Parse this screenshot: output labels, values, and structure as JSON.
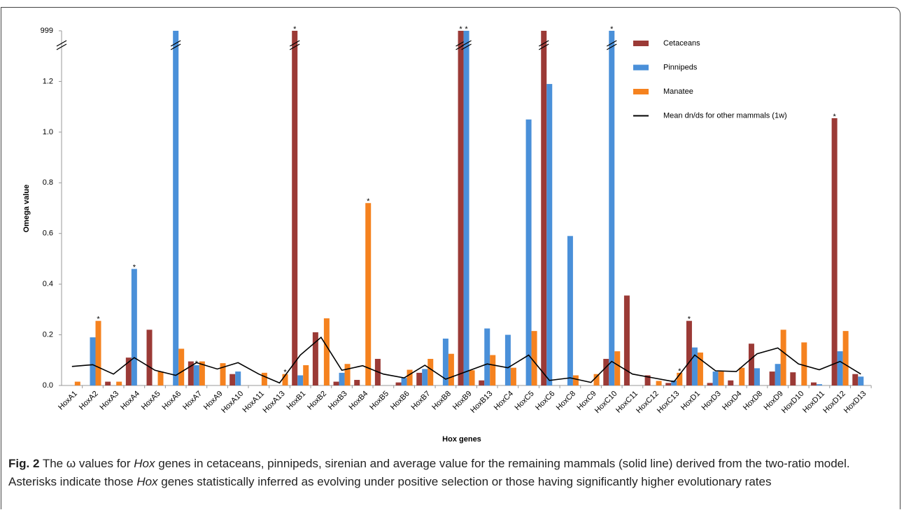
{
  "chart_data": {
    "type": "bar",
    "x_label": "Hox genes",
    "y_label": "Omega value",
    "categories": [
      "HoxA1",
      "HoxA2",
      "HoxA3",
      "HoxA4",
      "HoxA5",
      "HoxA6",
      "HoxA7",
      "HoxA9",
      "HoxA10",
      "HoxA11",
      "HoxA13",
      "HoxB1",
      "HoxB2",
      "HoxB3",
      "HoxB4",
      "HoxB5",
      "HoxB6",
      "HoxB7",
      "HoxB8",
      "HoxB9",
      "HoxB13",
      "HoxC4",
      "HoxC5",
      "HoxC6",
      "HoxC8",
      "HoxC9",
      "HoxC10",
      "HoxC11",
      "HoxC12",
      "HoxC13",
      "HoxD1",
      "HoxD3",
      "HoxD4",
      "HoxD8",
      "HoxD9",
      "HoxD10",
      "HoxD11",
      "HoxD12",
      "HoxD13"
    ],
    "series": [
      {
        "name": "Cetaceans",
        "color": "#9b3a36",
        "values": [
          null,
          null,
          0.015,
          0.11,
          0.22,
          null,
          0.095,
          null,
          0.045,
          null,
          null,
          999,
          0.21,
          0.015,
          0.022,
          0.105,
          0.012,
          0.05,
          null,
          999,
          0.02,
          null,
          null,
          999,
          null,
          null,
          0.105,
          0.355,
          0.04,
          0.01,
          0.255,
          0.01,
          0.02,
          0.165,
          0.055,
          0.052,
          0.012,
          1.055,
          0.045
        ]
      },
      {
        "name": "Pinnipeds",
        "color": "#4a90d9",
        "values": [
          null,
          0.19,
          null,
          0.46,
          null,
          999,
          0.08,
          null,
          0.055,
          null,
          null,
          0.04,
          null,
          0.05,
          null,
          null,
          0.03,
          0.065,
          0.185,
          999,
          0.225,
          0.2,
          1.05,
          1.19,
          0.59,
          null,
          999,
          null,
          null,
          0.02,
          0.15,
          0.055,
          null,
          0.068,
          0.085,
          null,
          0.005,
          0.135,
          0.035
        ]
      },
      {
        "name": "Manatee",
        "color": "#f5821f",
        "values": [
          0.015,
          0.255,
          0.015,
          null,
          0.055,
          0.145,
          0.095,
          0.088,
          null,
          0.05,
          0.045,
          0.08,
          0.265,
          0.085,
          0.72,
          null,
          0.062,
          0.105,
          0.125,
          0.06,
          0.12,
          0.07,
          0.215,
          null,
          0.04,
          0.045,
          0.135,
          null,
          0.018,
          0.05,
          0.13,
          0.055,
          0.07,
          null,
          0.22,
          0.17,
          null,
          0.215,
          null
        ]
      },
      {
        "name": "Mean dn/ds for other mammals (1w)",
        "type": "line",
        "color": "#000000",
        "values": [
          0.075,
          0.082,
          0.045,
          0.11,
          0.06,
          0.04,
          0.09,
          0.065,
          0.09,
          0.045,
          0.01,
          0.12,
          0.19,
          0.06,
          0.078,
          0.045,
          0.03,
          0.08,
          0.025,
          0.055,
          0.085,
          0.07,
          0.12,
          0.02,
          0.03,
          0.012,
          0.095,
          0.045,
          0.03,
          0.015,
          0.12,
          0.058,
          0.055,
          0.125,
          0.148,
          0.085,
          0.062,
          0.095,
          0.045
        ]
      }
    ],
    "ylim": [
      0,
      999
    ],
    "axis_break_at": 1.4,
    "yticks": [
      {
        "value": 0,
        "label": "0.0"
      },
      0.2,
      0.4,
      0.6,
      0.8,
      {
        "value": 1,
        "label": "1.0"
      },
      1.2,
      999
    ],
    "annotations": [
      {
        "text": "*",
        "category": "HoxA2",
        "series": "Manatee"
      },
      {
        "text": "*",
        "category": "HoxA4",
        "series": "Pinnipeds"
      },
      {
        "text": "*",
        "category": "HoxA7",
        "series": "Pinnipeds"
      },
      {
        "text": "*",
        "category": "HoxA13",
        "series": "Manatee"
      },
      {
        "text": "*",
        "category": "HoxB1",
        "series": "Cetaceans"
      },
      {
        "text": "*",
        "category": "HoxB4",
        "series": "Manatee"
      },
      {
        "text": "*",
        "category": "HoxB9",
        "series": "Cetaceans"
      },
      {
        "text": "*",
        "category": "HoxB9",
        "series": "Pinnipeds"
      },
      {
        "text": "*",
        "category": "HoxC10",
        "series": "Pinnipeds"
      },
      {
        "text": "*",
        "category": "HoxC13",
        "series": "Manatee"
      },
      {
        "text": "*",
        "category": "HoxD1",
        "series": "Cetaceans"
      },
      {
        "text": "*",
        "category": "HoxD12",
        "series": "Cetaceans"
      }
    ]
  },
  "caption": {
    "label": "Fig. 2",
    "parts": [
      "The ω values for ",
      "Hox",
      " genes in cetaceans, pinnipeds, sirenian and average value for the remaining mammals (solid line) derived from the two-ratio model. Asterisks indicate those ",
      "Hox",
      " genes statistically inferred as evolving under positive selection or those having significantly higher evolutionary rates"
    ]
  }
}
